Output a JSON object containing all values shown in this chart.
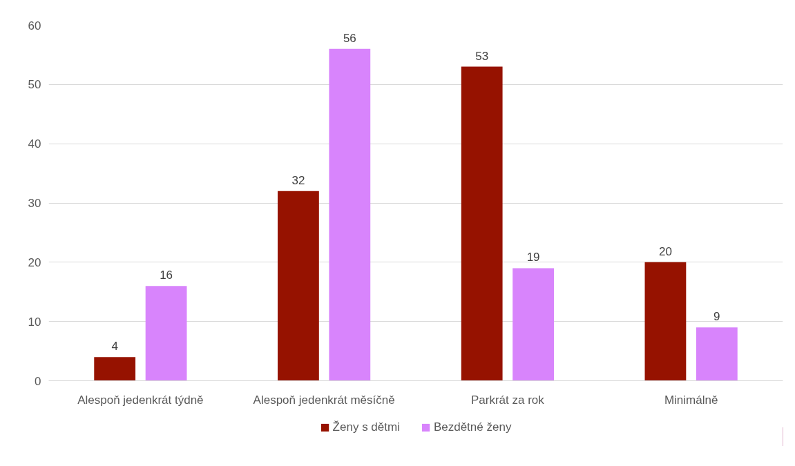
{
  "chart_data": {
    "type": "bar",
    "categories": [
      "Alespoň jedenkrát týdně",
      "Alespoň jedenkrát měsíčně",
      "Parkrát za rok",
      "Minimálně"
    ],
    "series": [
      {
        "name": "Ženy s dětmi",
        "color": "#961200",
        "values": [
          4,
          32,
          53,
          20
        ]
      },
      {
        "name": "Bezdětné ženy",
        "color": "#d884fc",
        "values": [
          16,
          56,
          19,
          9
        ]
      }
    ],
    "ylim": [
      0,
      60
    ],
    "yticks": [
      0,
      10,
      20,
      30,
      40,
      50,
      60
    ],
    "grid": "y",
    "legend": "bottom",
    "data_labels": true
  }
}
